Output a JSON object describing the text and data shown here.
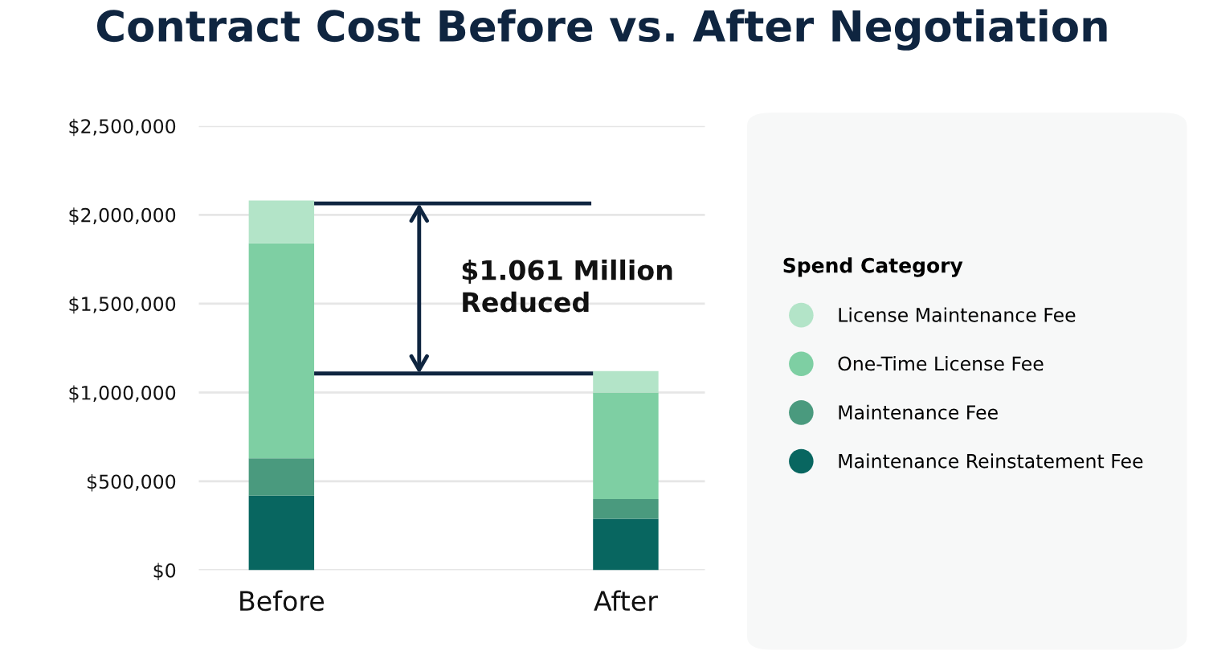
{
  "chart_data": {
    "type": "bar",
    "title": "Contract Cost Before vs. After Negotiation",
    "stacked": true,
    "categories": [
      "Before",
      "After"
    ],
    "series": [
      {
        "name": "Maintenance Reinstatement Fee",
        "color": "#086660",
        "values": [
          420000,
          290000
        ]
      },
      {
        "name": "Maintenance Fee",
        "color": "#4a9a7e",
        "values": [
          210000,
          110000
        ]
      },
      {
        "name": "One-Time License Fee",
        "color": "#7ecfa3",
        "values": [
          1210000,
          600000
        ]
      },
      {
        "name": "License Maintenance Fee",
        "color": "#b3e4c8",
        "values": [
          240000,
          120000
        ]
      }
    ],
    "ylim": [
      0,
      2500000
    ],
    "yticks": [
      {
        "value": 0,
        "label": "$0"
      },
      {
        "value": 500000,
        "label": "$500,000"
      },
      {
        "value": 1000000,
        "label": "$1,000,000"
      },
      {
        "value": 1500000,
        "label": "$1,500,000"
      },
      {
        "value": 2000000,
        "label": "$2,000,000"
      },
      {
        "value": 2500000,
        "label": "$2,500,000"
      }
    ],
    "ref_lines": [
      {
        "axis": "y",
        "value": 2064000,
        "color": "#0f2540"
      },
      {
        "axis": "y",
        "value": 1107000,
        "color": "#0f2540"
      }
    ],
    "grid": "y",
    "legend": "right",
    "legend_title": "Spend Category",
    "annotations": [
      "$1.061 Million\nReduced"
    ]
  }
}
